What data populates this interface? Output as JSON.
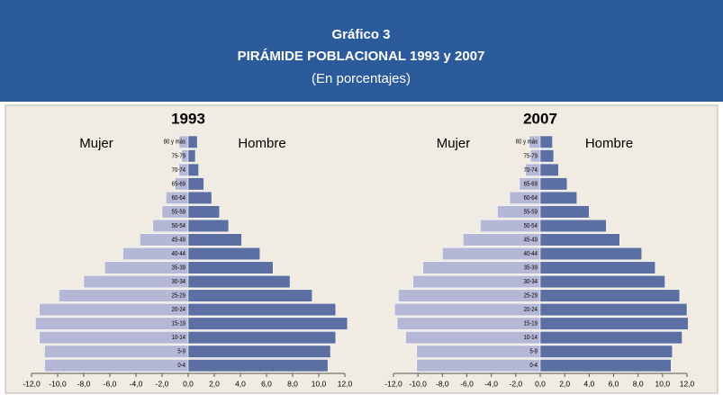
{
  "header": {
    "title": "Gráfico 3",
    "subtitle": "PIRÁMIDE POBLACIONAL 1993 y 2007",
    "note": "(En porcentajes)"
  },
  "chart_data": [
    {
      "type": "pyramid",
      "title": "1993",
      "categories": [
        "80 y más",
        "75-79",
        "70-74",
        "65-69",
        "60-64",
        "55-59",
        "50-54",
        "45-49",
        "40-44",
        "35-39",
        "30-34",
        "25-29",
        "20-24",
        "15-19",
        "10-14",
        "5-9",
        "0-4"
      ],
      "series": [
        {
          "name": "Mujer",
          "color": "#b4b7d6",
          "values": [
            -0.7,
            -0.5,
            -0.7,
            -1.0,
            -1.7,
            -2.0,
            -2.7,
            -3.7,
            -5.0,
            -6.4,
            -8.0,
            -9.9,
            -11.4,
            -11.7,
            -11.4,
            -11.0,
            -11.0
          ]
        },
        {
          "name": "Hombre",
          "color": "#5c6fa3",
          "values": [
            0.7,
            0.55,
            0.8,
            1.2,
            1.8,
            2.4,
            3.1,
            4.1,
            5.5,
            6.5,
            7.8,
            9.5,
            11.3,
            12.2,
            11.3,
            10.9,
            10.7
          ]
        }
      ],
      "xlim": [
        -12,
        12
      ],
      "xticks": [
        {
          "value": -12,
          "label": "-12,0"
        },
        {
          "value": -10,
          "label": "-10,0"
        },
        {
          "value": -8,
          "label": "-8,0"
        },
        {
          "value": -6,
          "label": "-6,0"
        },
        {
          "value": -4,
          "label": "-4,0"
        },
        {
          "value": -2,
          "label": "-2,0"
        },
        {
          "value": 0,
          "label": "0,0"
        },
        {
          "value": 2,
          "label": "2,0"
        },
        {
          "value": 4,
          "label": "4,0"
        },
        {
          "value": 6,
          "label": "6,0"
        },
        {
          "value": 8,
          "label": "8,0"
        },
        {
          "value": 10,
          "label": "10,0"
        },
        {
          "value": 12,
          "label": "12,0"
        }
      ]
    },
    {
      "type": "pyramid",
      "title": "2007",
      "categories": [
        "80 y más",
        "75-79",
        "70-74",
        "65-69",
        "60-64",
        "55-59",
        "50-54",
        "45-49",
        "40-44",
        "35-39",
        "30-34",
        "25-29",
        "20-24",
        "15-19",
        "10-14",
        "5-9",
        "0-4"
      ],
      "series": [
        {
          "name": "Mujer",
          "color": "#b4b7d6",
          "values": [
            -0.9,
            -0.8,
            -1.2,
            -1.7,
            -2.5,
            -3.5,
            -4.9,
            -6.3,
            -8.0,
            -9.6,
            -10.4,
            -11.6,
            -11.9,
            -11.7,
            -11.0,
            -10.1,
            -10.1
          ]
        },
        {
          "name": "Hombre",
          "color": "#5c6fa3",
          "values": [
            1.0,
            1.1,
            1.5,
            2.2,
            3.0,
            4.0,
            5.4,
            6.5,
            8.3,
            9.4,
            10.2,
            11.4,
            12.0,
            12.1,
            11.6,
            10.8,
            10.7
          ]
        }
      ],
      "xlim": [
        -12,
        12
      ],
      "xticks": [
        {
          "value": -12,
          "label": "-12,0"
        },
        {
          "value": -10,
          "label": "-10,0"
        },
        {
          "value": -8,
          "label": "-8,0"
        },
        {
          "value": -6,
          "label": "-6,0"
        },
        {
          "value": -4,
          "label": "-4,0"
        },
        {
          "value": -2,
          "label": "-2,0"
        },
        {
          "value": 0,
          "label": "0,0"
        },
        {
          "value": 2,
          "label": "2,0"
        },
        {
          "value": 4,
          "label": "4,0"
        },
        {
          "value": 6,
          "label": "6,0"
        },
        {
          "value": 8,
          "label": "8,0"
        },
        {
          "value": 10,
          "label": "10,0"
        },
        {
          "value": 12,
          "label": "12,0"
        }
      ]
    }
  ]
}
